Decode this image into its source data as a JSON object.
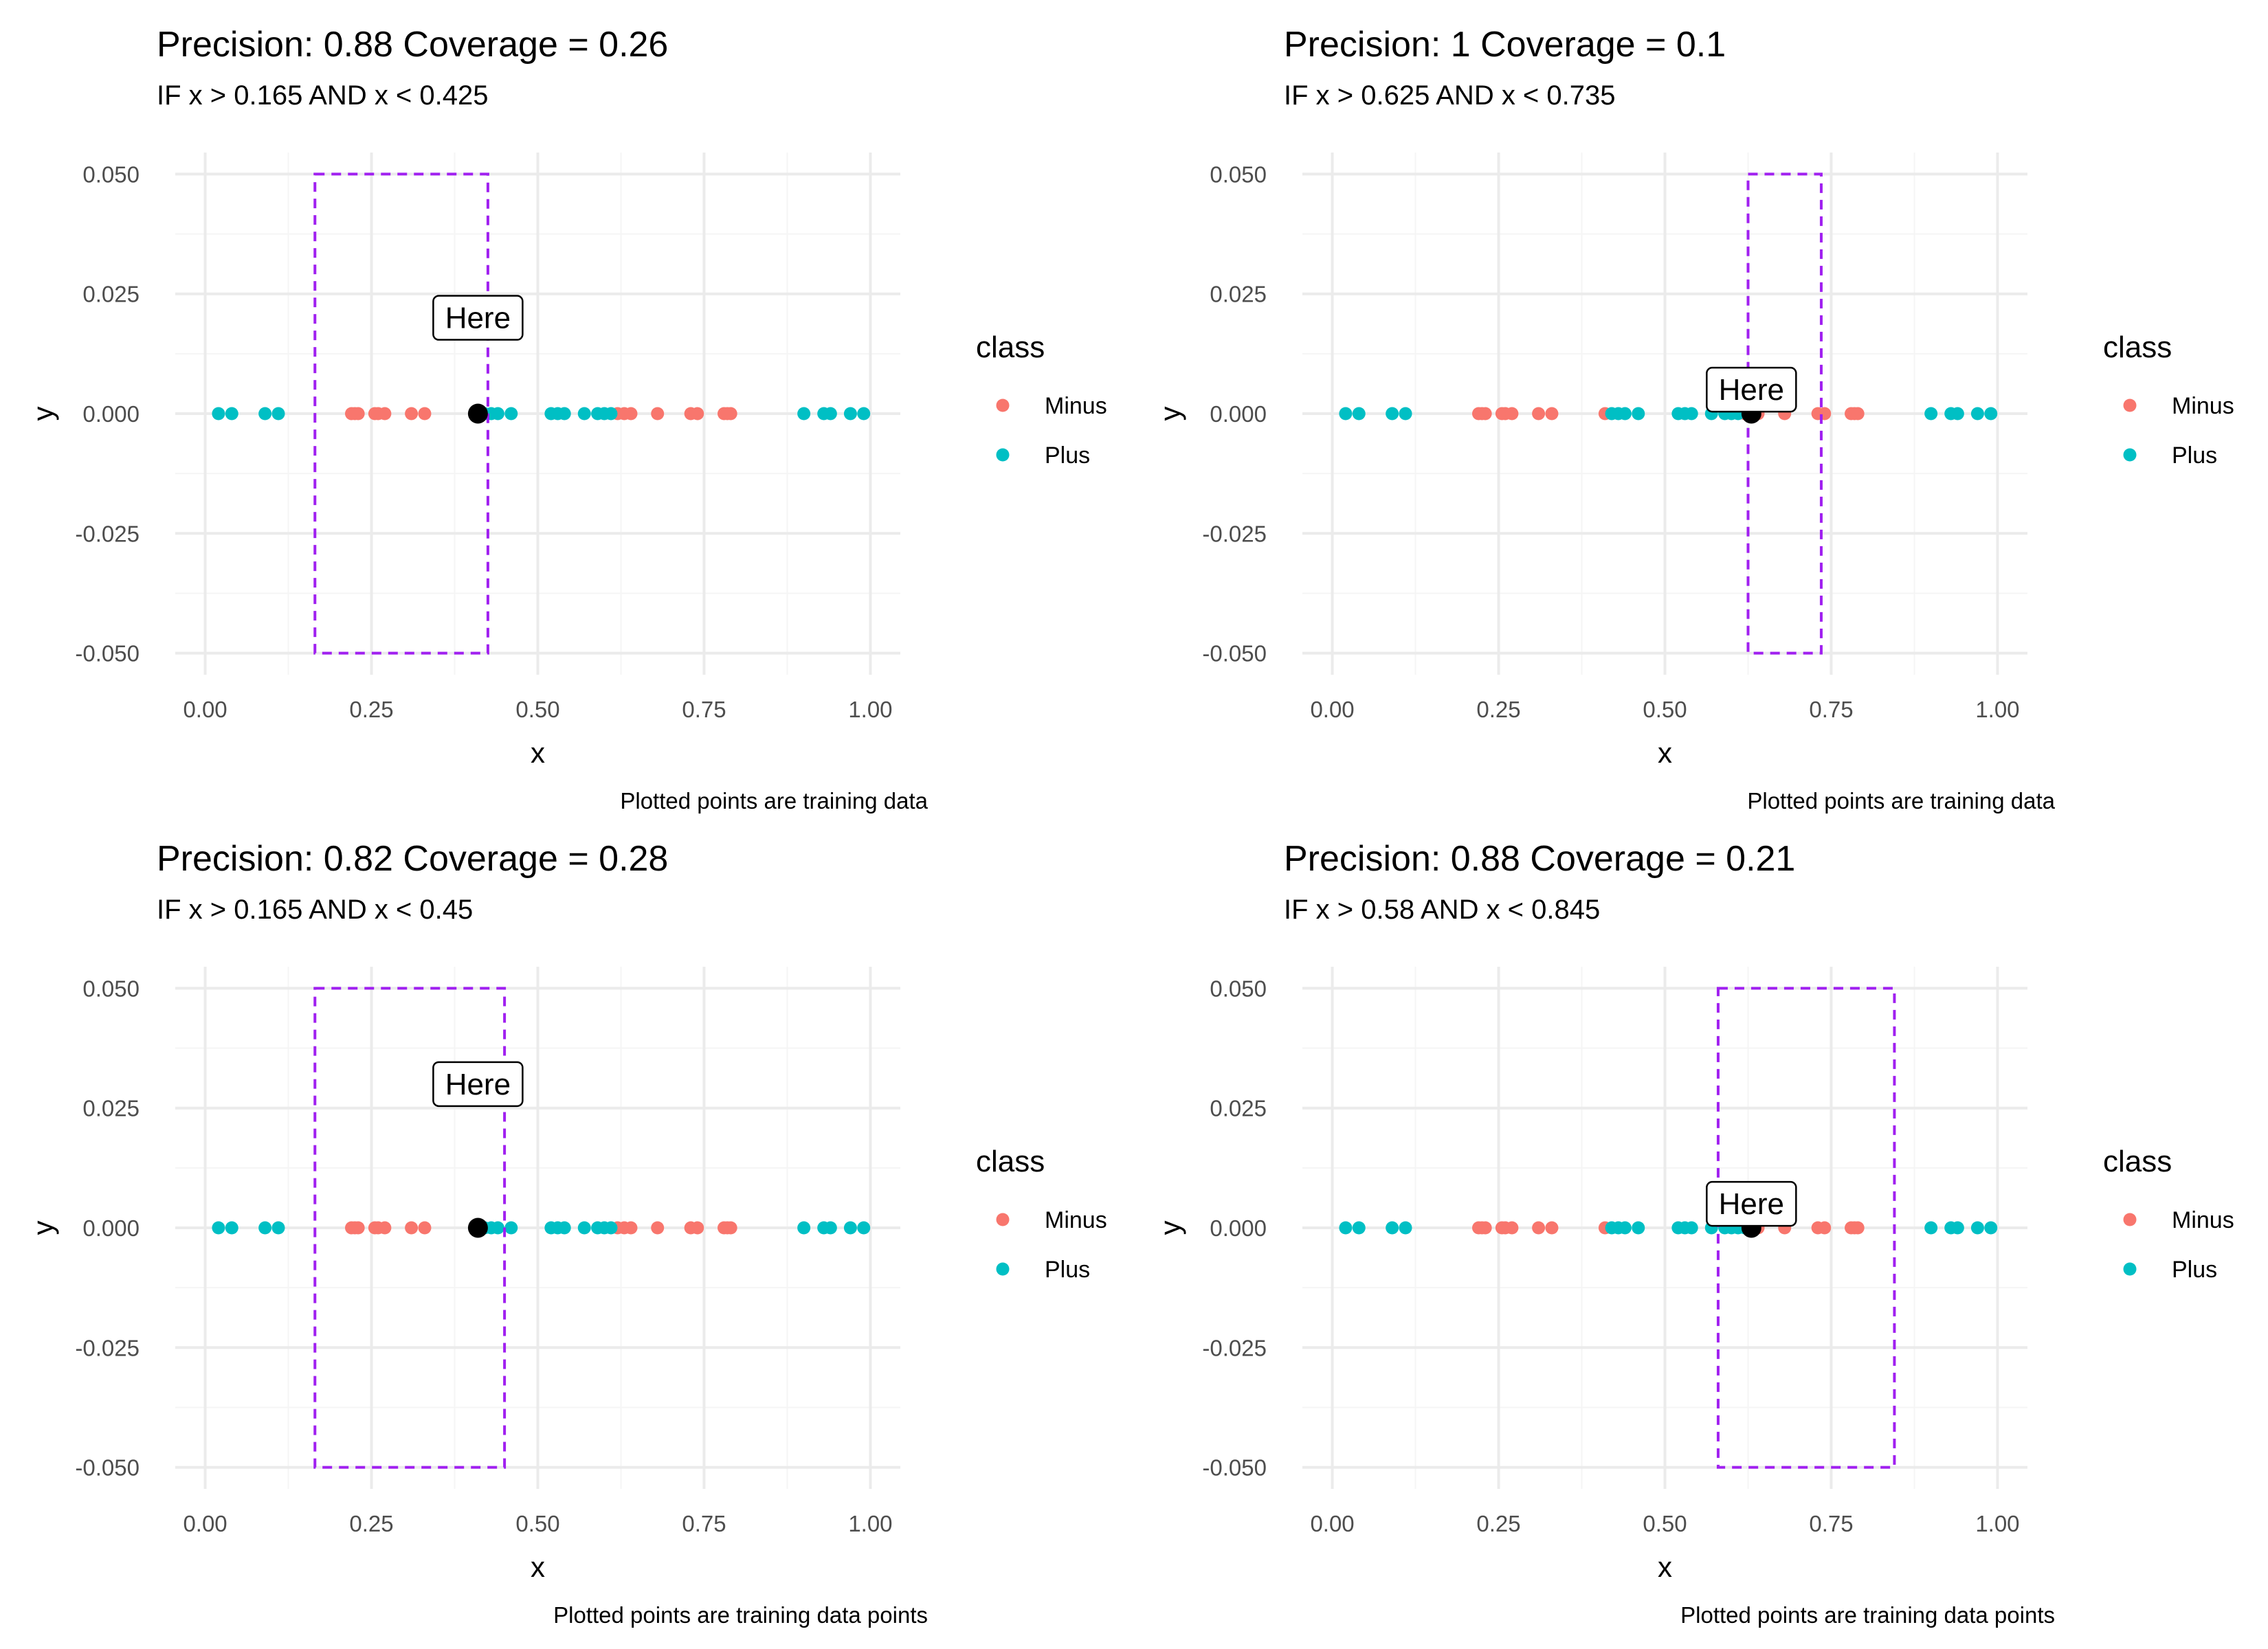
{
  "chart_data": [
    {
      "type": "scatter",
      "title": "Precision: 0.88 Coverage = 0.26",
      "subtitle": "IF x > 0.165 AND x < 0.425",
      "xlabel": "x",
      "ylabel": "y",
      "caption": "Plotted points are training data",
      "xlim": [
        0,
        1
      ],
      "ylim": [
        -0.05,
        0.05
      ],
      "xticks": [
        "0.00",
        "0.25",
        "0.50",
        "0.75",
        "1.00"
      ],
      "yticks": [
        "0.050",
        "0.025",
        "0.000",
        "-0.025",
        "-0.050"
      ],
      "grid": true,
      "legend_title": "class",
      "legend_position": "right",
      "rule_box": {
        "x_min": 0.165,
        "x_max": 0.425,
        "y_min": -0.05,
        "y_max": 0.05
      },
      "highlight_point": {
        "x": 0.41,
        "y": 0.0
      },
      "label": {
        "text": "Here",
        "x": 0.41,
        "y": 0.02
      },
      "series": [
        {
          "name": "Minus",
          "x": [
            0.22,
            0.225,
            0.23,
            0.255,
            0.26,
            0.27,
            0.31,
            0.33,
            0.62,
            0.63,
            0.64,
            0.68,
            0.73,
            0.74,
            0.78,
            0.785,
            0.79
          ],
          "y": [
            0,
            0,
            0,
            0,
            0,
            0,
            0,
            0,
            0,
            0,
            0,
            0,
            0,
            0,
            0,
            0,
            0
          ]
        },
        {
          "name": "Plus",
          "x": [
            0.02,
            0.04,
            0.09,
            0.11,
            0.42,
            0.43,
            0.44,
            0.46,
            0.52,
            0.53,
            0.54,
            0.57,
            0.59,
            0.6,
            0.61,
            0.9,
            0.93,
            0.94,
            0.97,
            0.99
          ],
          "y": [
            0,
            0,
            0,
            0,
            0,
            0,
            0,
            0,
            0,
            0,
            0,
            0,
            0,
            0,
            0,
            0,
            0,
            0,
            0,
            0
          ]
        }
      ]
    },
    {
      "type": "scatter",
      "title": "Precision: 1 Coverage = 0.1",
      "subtitle": "IF x > 0.625 AND x < 0.735",
      "xlabel": "x",
      "ylabel": "y",
      "caption": "Plotted points are training data",
      "xlim": [
        0,
        1
      ],
      "ylim": [
        -0.05,
        0.05
      ],
      "xticks": [
        "0.00",
        "0.25",
        "0.50",
        "0.75",
        "1.00"
      ],
      "yticks": [
        "0.050",
        "0.025",
        "0.000",
        "-0.025",
        "-0.050"
      ],
      "grid": true,
      "legend_title": "class",
      "legend_position": "right",
      "rule_box": {
        "x_min": 0.625,
        "x_max": 0.735,
        "y_min": -0.05,
        "y_max": 0.05
      },
      "highlight_point": {
        "x": 0.63,
        "y": 0.0
      },
      "label": {
        "text": "Here",
        "x": 0.63,
        "y": 0.005
      },
      "series": [
        {
          "name": "Minus",
          "x": [
            0.22,
            0.225,
            0.23,
            0.255,
            0.26,
            0.27,
            0.31,
            0.33,
            0.41,
            0.62,
            0.64,
            0.68,
            0.73,
            0.74,
            0.78,
            0.785,
            0.79
          ],
          "y": [
            0,
            0,
            0,
            0,
            0,
            0,
            0,
            0,
            0,
            0,
            0,
            0,
            0,
            0,
            0,
            0,
            0
          ]
        },
        {
          "name": "Plus",
          "x": [
            0.02,
            0.04,
            0.09,
            0.11,
            0.42,
            0.43,
            0.44,
            0.46,
            0.52,
            0.53,
            0.54,
            0.57,
            0.59,
            0.6,
            0.61,
            0.9,
            0.93,
            0.94,
            0.97,
            0.99
          ],
          "y": [
            0,
            0,
            0,
            0,
            0,
            0,
            0,
            0,
            0,
            0,
            0,
            0,
            0,
            0,
            0,
            0,
            0,
            0,
            0,
            0
          ]
        }
      ]
    },
    {
      "type": "scatter",
      "title": "Precision: 0.82 Coverage = 0.28",
      "subtitle": "IF x > 0.165 AND x < 0.45",
      "xlabel": "x",
      "ylabel": "y",
      "caption": "Plotted points are training data points",
      "xlim": [
        0,
        1
      ],
      "ylim": [
        -0.05,
        0.05
      ],
      "xticks": [
        "0.00",
        "0.25",
        "0.50",
        "0.75",
        "1.00"
      ],
      "yticks": [
        "0.050",
        "0.025",
        "0.000",
        "-0.025",
        "-0.050"
      ],
      "grid": true,
      "legend_title": "class",
      "legend_position": "right",
      "rule_box": {
        "x_min": 0.165,
        "x_max": 0.45,
        "y_min": -0.05,
        "y_max": 0.05
      },
      "highlight_point": {
        "x": 0.41,
        "y": 0.0
      },
      "label": {
        "text": "Here",
        "x": 0.41,
        "y": 0.03
      },
      "series": [
        {
          "name": "Minus",
          "x": [
            0.22,
            0.225,
            0.23,
            0.255,
            0.26,
            0.27,
            0.31,
            0.33,
            0.62,
            0.63,
            0.64,
            0.68,
            0.73,
            0.74,
            0.78,
            0.785,
            0.79
          ],
          "y": [
            0,
            0,
            0,
            0,
            0,
            0,
            0,
            0,
            0,
            0,
            0,
            0,
            0,
            0,
            0,
            0,
            0
          ]
        },
        {
          "name": "Plus",
          "x": [
            0.02,
            0.04,
            0.09,
            0.11,
            0.42,
            0.43,
            0.44,
            0.46,
            0.52,
            0.53,
            0.54,
            0.57,
            0.59,
            0.6,
            0.61,
            0.9,
            0.93,
            0.94,
            0.97,
            0.99
          ],
          "y": [
            0,
            0,
            0,
            0,
            0,
            0,
            0,
            0,
            0,
            0,
            0,
            0,
            0,
            0,
            0,
            0,
            0,
            0,
            0,
            0
          ]
        }
      ]
    },
    {
      "type": "scatter",
      "title": "Precision: 0.88 Coverage = 0.21",
      "subtitle": "IF x > 0.58 AND x < 0.845",
      "xlabel": "x",
      "ylabel": "y",
      "caption": "Plotted points are training data points",
      "xlim": [
        0,
        1
      ],
      "ylim": [
        -0.05,
        0.05
      ],
      "xticks": [
        "0.00",
        "0.25",
        "0.50",
        "0.75",
        "1.00"
      ],
      "yticks": [
        "0.050",
        "0.025",
        "0.000",
        "-0.025",
        "-0.050"
      ],
      "grid": true,
      "legend_title": "class",
      "legend_position": "right",
      "rule_box": {
        "x_min": 0.58,
        "x_max": 0.845,
        "y_min": -0.05,
        "y_max": 0.05
      },
      "highlight_point": {
        "x": 0.63,
        "y": 0.0
      },
      "label": {
        "text": "Here",
        "x": 0.63,
        "y": 0.005
      },
      "series": [
        {
          "name": "Minus",
          "x": [
            0.22,
            0.225,
            0.23,
            0.255,
            0.26,
            0.27,
            0.31,
            0.33,
            0.41,
            0.64,
            0.68,
            0.73,
            0.74,
            0.78,
            0.785,
            0.79
          ],
          "y": [
            0,
            0,
            0,
            0,
            0,
            0,
            0,
            0,
            0,
            0,
            0,
            0,
            0,
            0,
            0,
            0
          ]
        },
        {
          "name": "Plus",
          "x": [
            0.02,
            0.04,
            0.09,
            0.11,
            0.42,
            0.43,
            0.44,
            0.46,
            0.52,
            0.53,
            0.54,
            0.57,
            0.59,
            0.6,
            0.61,
            0.62,
            0.9,
            0.93,
            0.94,
            0.97,
            0.99
          ],
          "y": [
            0,
            0,
            0,
            0,
            0,
            0,
            0,
            0,
            0,
            0,
            0,
            0,
            0,
            0,
            0,
            0,
            0,
            0,
            0,
            0,
            0
          ]
        }
      ]
    }
  ],
  "colors": {
    "minus": "#F8766D",
    "plus": "#00BFC4",
    "highlight": "#000000",
    "rule_box": "#A020F0",
    "grid_major": "#EBEBEB",
    "grid_minor": "#F5F5F5",
    "text": "#000000",
    "tick_text": "#4D4D4D"
  }
}
